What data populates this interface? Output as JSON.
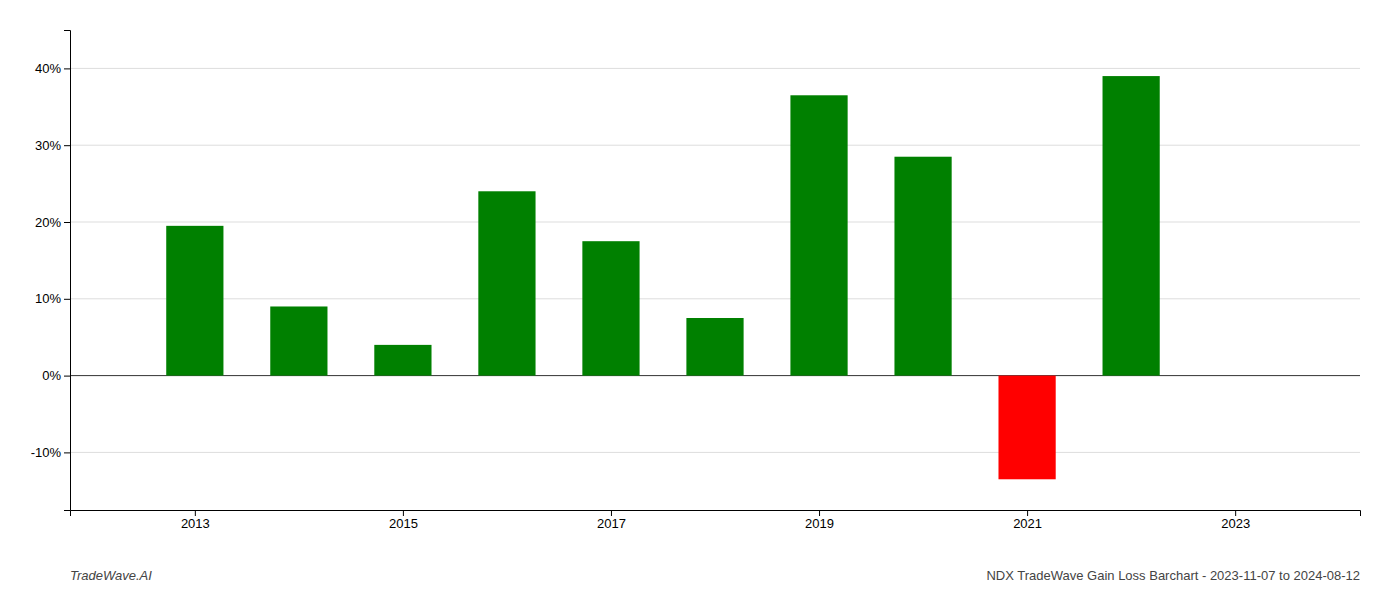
{
  "chart_data": {
    "type": "bar",
    "title": "NDX TradeWave Gain Loss Barchart - 2023-11-07 to 2024-08-12",
    "annotations": [
      "TradeWave.AI"
    ],
    "x": [
      2013,
      2014,
      2015,
      2016,
      2017,
      2018,
      2019,
      2020,
      2021,
      2022
    ],
    "values": [
      0.195,
      0.09,
      0.04,
      0.24,
      0.175,
      0.075,
      0.365,
      0.285,
      -0.135,
      0.39
    ],
    "colors": [
      "#008000",
      "#008000",
      "#008000",
      "#008000",
      "#008000",
      "#008000",
      "#008000",
      "#008000",
      "#ff0000",
      "#008000"
    ],
    "xlim": [
      2011.8,
      2024.2
    ],
    "xticks": [
      2013,
      2015,
      2017,
      2019,
      2021,
      2023
    ],
    "ylim": [
      -0.175,
      0.45
    ],
    "yticks": [
      {
        "value": -0.1,
        "label": "-10%"
      },
      {
        "value": 0.0,
        "label": "0%"
      },
      {
        "value": 0.1,
        "label": "10%"
      },
      {
        "value": 0.2,
        "label": "20%"
      },
      {
        "value": 0.3,
        "label": "30%"
      },
      {
        "value": 0.4,
        "label": "40%"
      }
    ],
    "grid": true
  }
}
